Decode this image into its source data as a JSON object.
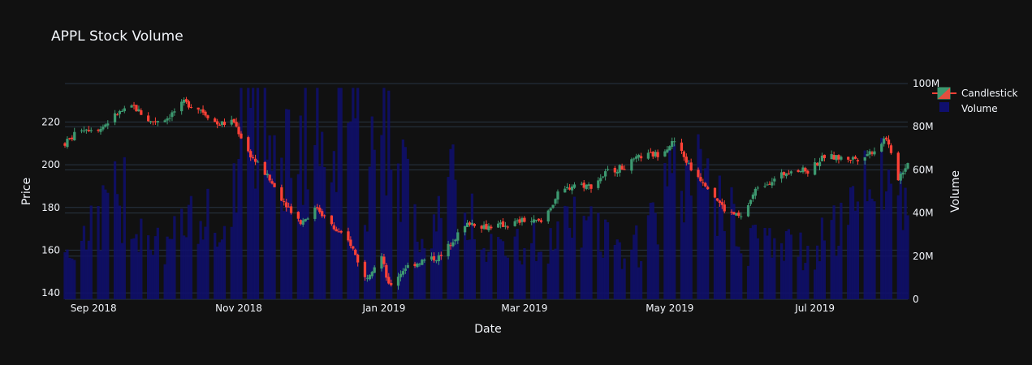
{
  "title": "APPL Stock Volume",
  "colors": {
    "background": "#111111",
    "grid": "#283442",
    "increasing": "#3d9970",
    "decreasing": "#ff4136",
    "volume": "#0f0f6e",
    "text": "#f2f5fa"
  },
  "chart_data": {
    "type": "candlestick+bar",
    "title": "APPL Stock Volume",
    "xlabel": "Date",
    "ylabel_left": "Price",
    "ylabel_right": "Volume",
    "x_range": [
      "2018-08-20",
      "2019-08-09"
    ],
    "x_ticks": [
      {
        "date": "2018-09-01",
        "label": "Sep 2018"
      },
      {
        "date": "2018-11-01",
        "label": "Nov 2018"
      },
      {
        "date": "2019-01-01",
        "label": "Jan 2019"
      },
      {
        "date": "2019-03-01",
        "label": "Mar 2019"
      },
      {
        "date": "2019-05-01",
        "label": "May 2019"
      },
      {
        "date": "2019-07-01",
        "label": "Jul 2019"
      }
    ],
    "price_range": [
      137,
      238
    ],
    "price_ticks": [
      140,
      160,
      180,
      200,
      220
    ],
    "volume_range": [
      0,
      100000000
    ],
    "volume_ticks": [
      {
        "value": 0,
        "label": "0"
      },
      {
        "value": 20000000,
        "label": "20M"
      },
      {
        "value": 40000000,
        "label": "40M"
      },
      {
        "value": 60000000,
        "label": "60M"
      },
      {
        "value": 80000000,
        "label": "80M"
      },
      {
        "value": 100000000,
        "label": "100M"
      }
    ],
    "legend": {
      "placement": "top-right",
      "entries": [
        "Candlestick",
        "Volume"
      ]
    },
    "price_anchors": [
      [
        "2018-08-20",
        210
      ],
      [
        "2018-08-27",
        217
      ],
      [
        "2018-09-04",
        217
      ],
      [
        "2018-09-11",
        224
      ],
      [
        "2018-09-18",
        227
      ],
      [
        "2018-09-25",
        220
      ],
      [
        "2018-10-02",
        222
      ],
      [
        "2018-10-09",
        229
      ],
      [
        "2018-10-16",
        226
      ],
      [
        "2018-10-23",
        219
      ],
      [
        "2018-10-30",
        220
      ],
      [
        "2018-11-05",
        206
      ],
      [
        "2018-11-12",
        196
      ],
      [
        "2018-11-20",
        183
      ],
      [
        "2018-11-27",
        173
      ],
      [
        "2018-12-04",
        180
      ],
      [
        "2018-12-11",
        170
      ],
      [
        "2018-12-18",
        163
      ],
      [
        "2018-12-24",
        147
      ],
      [
        "2018-12-31",
        157
      ],
      [
        "2019-01-03",
        143
      ],
      [
        "2019-01-10",
        152
      ],
      [
        "2019-01-17",
        155
      ],
      [
        "2019-01-25",
        157
      ],
      [
        "2019-01-30",
        165
      ],
      [
        "2019-02-06",
        173
      ],
      [
        "2019-02-13",
        171
      ],
      [
        "2019-02-22",
        172
      ],
      [
        "2019-03-01",
        174
      ],
      [
        "2019-03-08",
        173
      ],
      [
        "2019-03-15",
        186
      ],
      [
        "2019-03-22",
        191
      ],
      [
        "2019-03-29",
        190
      ],
      [
        "2019-04-05",
        197
      ],
      [
        "2019-04-12",
        199
      ],
      [
        "2019-04-19",
        204
      ],
      [
        "2019-04-26",
        205
      ],
      [
        "2019-05-03",
        211
      ],
      [
        "2019-05-10",
        198
      ],
      [
        "2019-05-17",
        190
      ],
      [
        "2019-05-24",
        179
      ],
      [
        "2019-05-31",
        175
      ],
      [
        "2019-06-07",
        190
      ],
      [
        "2019-06-14",
        193
      ],
      [
        "2019-06-21",
        198
      ],
      [
        "2019-06-28",
        197
      ],
      [
        "2019-07-05",
        204
      ],
      [
        "2019-07-12",
        203
      ],
      [
        "2019-07-19",
        203
      ],
      [
        "2019-07-26",
        207
      ],
      [
        "2019-07-31",
        213
      ],
      [
        "2019-08-02",
        204
      ],
      [
        "2019-08-05",
        194
      ],
      [
        "2019-08-09",
        201
      ]
    ],
    "volume_anchors": [
      [
        "2018-08-20",
        22000000
      ],
      [
        "2018-09-04",
        36000000
      ],
      [
        "2018-09-12",
        48000000
      ],
      [
        "2018-10-01",
        26000000
      ],
      [
        "2018-10-30",
        45000000
      ],
      [
        "2018-11-02",
        90000000
      ],
      [
        "2018-11-20",
        65000000
      ],
      [
        "2018-12-21",
        95000000
      ],
      [
        "2018-12-24",
        45000000
      ],
      [
        "2019-01-03",
        90000000
      ],
      [
        "2019-01-15",
        30000000
      ],
      [
        "2019-01-30",
        50000000
      ],
      [
        "2019-02-15",
        22000000
      ],
      [
        "2019-03-11",
        28000000
      ],
      [
        "2019-03-25",
        35000000
      ],
      [
        "2019-04-15",
        20000000
      ],
      [
        "2019-05-01",
        50000000
      ],
      [
        "2019-05-13",
        55000000
      ],
      [
        "2019-06-03",
        28000000
      ],
      [
        "2019-07-01",
        22000000
      ],
      [
        "2019-07-31",
        65000000
      ],
      [
        "2019-08-05",
        55000000
      ],
      [
        "2019-08-09",
        40000000
      ]
    ]
  }
}
